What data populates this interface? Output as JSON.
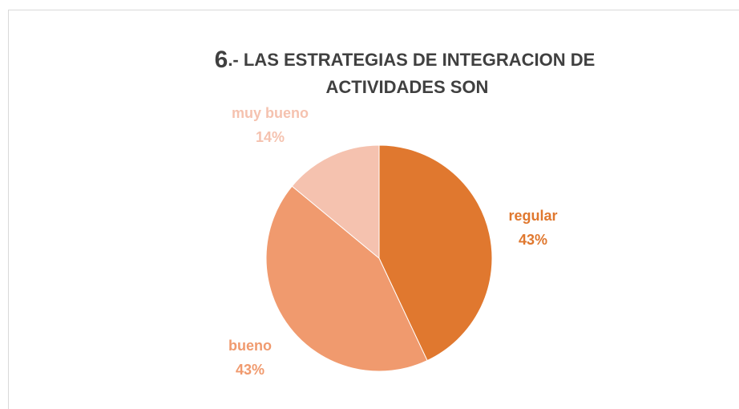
{
  "chart_data": {
    "type": "pie",
    "title": "6.- LAS ESTRATEGIAS DE INTEGRACION DE ACTIVIDADES SON",
    "categories": [
      "regular",
      "bueno",
      "muy bueno"
    ],
    "values": [
      43,
      43,
      14
    ],
    "value_labels": [
      "43%",
      "43%",
      "14%"
    ],
    "colors": [
      "#E0782F",
      "#F09A6E",
      "#F5C2AF"
    ]
  }
}
